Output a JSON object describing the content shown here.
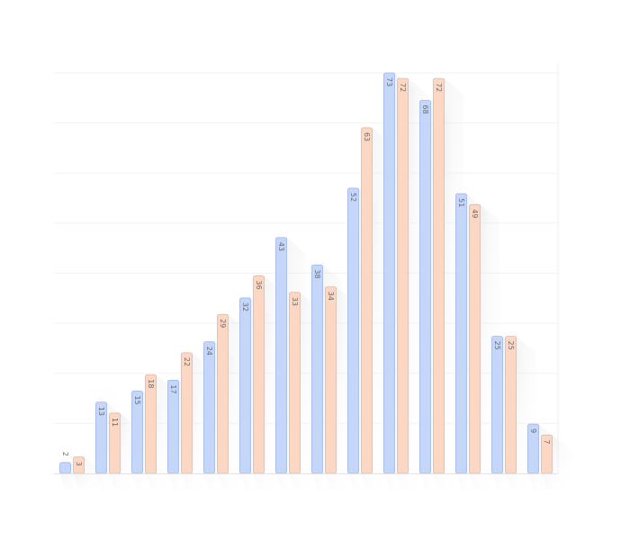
{
  "chart_data": {
    "type": "bar",
    "categories": [
      "",
      "",
      "",
      "",
      "",
      "",
      "",
      "",
      "",
      "",
      "",
      "",
      "",
      ""
    ],
    "series": [
      {
        "values": [
          2,
          13,
          15,
          17,
          24,
          32,
          43,
          38,
          52,
          73,
          68,
          51,
          25,
          9
        ]
      },
      {
        "values": [
          3,
          11,
          18,
          22,
          29,
          36,
          33,
          34,
          63,
          72,
          72,
          49,
          25,
          7
        ]
      }
    ],
    "ylim": [
      0,
      73
    ],
    "grid": true,
    "title": "",
    "xlabel": "",
    "ylabel": "",
    "colors": {
      "series_fill": [
        "#c5d6fb",
        "#fcd8c4"
      ],
      "series_stroke": [
        "#9fb6ec",
        "#eab39a"
      ],
      "grid": "#f3f3f3",
      "shadow": "#d9d9d9"
    }
  }
}
